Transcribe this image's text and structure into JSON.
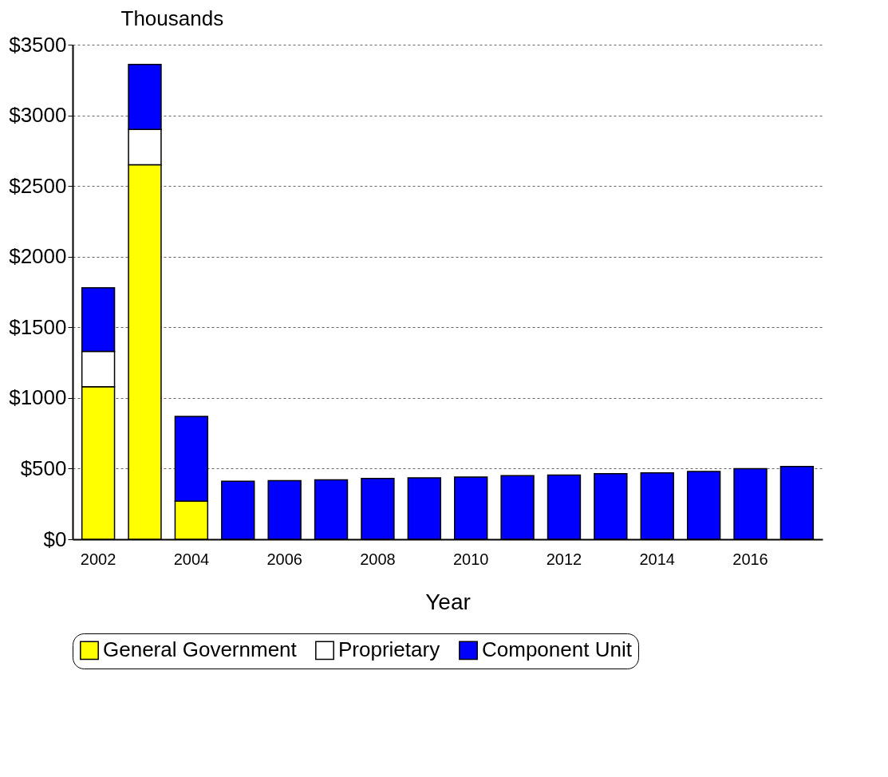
{
  "chart_data": {
    "type": "bar",
    "stacked": true,
    "ylabel": "Thousands",
    "xlabel": "Year",
    "categories": [
      "2002",
      null,
      "2004",
      null,
      "2006",
      null,
      "2008",
      null,
      "2010",
      null,
      "2012",
      null,
      "2014",
      null,
      "2016",
      null
    ],
    "series": [
      {
        "name": "General Government",
        "color": "#ffff00",
        "values": [
          1080,
          2650,
          270,
          null,
          null,
          null,
          null,
          null,
          null,
          null,
          null,
          null,
          null,
          null,
          null,
          null
        ]
      },
      {
        "name": "Proprietary",
        "color": "#ffffff",
        "values": [
          250,
          250,
          null,
          null,
          null,
          null,
          null,
          null,
          null,
          null,
          null,
          null,
          null,
          null,
          null,
          null
        ]
      },
      {
        "name": "Component Unit",
        "color": "#0000ff",
        "values": [
          450,
          460,
          600,
          410,
          415,
          420,
          430,
          435,
          440,
          450,
          455,
          465,
          470,
          480,
          500,
          515
        ]
      }
    ],
    "ylim": [
      0,
      3500
    ],
    "yticks": [
      {
        "value": 0,
        "label": "$0"
      },
      {
        "value": 500,
        "label": "$500"
      },
      {
        "value": 1000,
        "label": "$1000"
      },
      {
        "value": 1500,
        "label": "$1500"
      },
      {
        "value": 2000,
        "label": "$2000"
      },
      {
        "value": 2500,
        "label": "$2500"
      },
      {
        "value": 3000,
        "label": "$3000"
      },
      {
        "value": 3500,
        "label": "$3500"
      }
    ],
    "grid": "y",
    "legend": "bottom"
  }
}
